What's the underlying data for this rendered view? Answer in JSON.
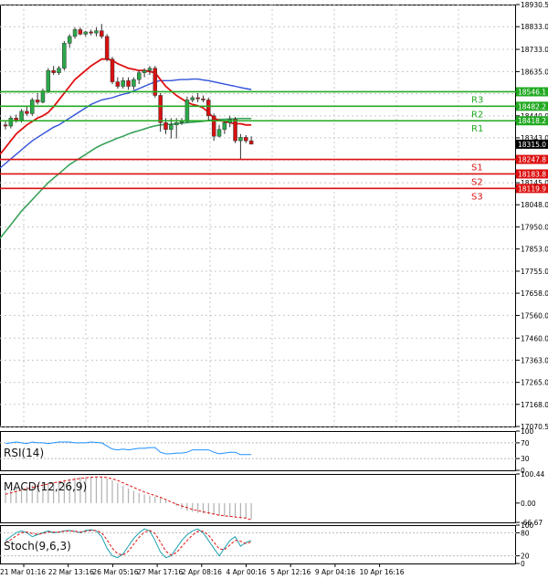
{
  "chart_data": [
    {
      "type": "candlestick",
      "timeframe_hours": 4,
      "ylim": [
        17070.5,
        18930.5
      ],
      "y_ticks": [
        18930.5,
        18833.0,
        18733.0,
        18635.0,
        18538.0,
        18440.0,
        18343.0,
        18245.0,
        18145.0,
        18048.0,
        17950.0,
        17853.0,
        17755.0,
        17658.0,
        17560.0,
        17460.0,
        17363.0,
        17265.0,
        17168.0,
        17070.5
      ],
      "y_tick_labels": [
        "18930.5",
        "18833.0",
        "18733.0",
        "18635.0",
        "18538.0",
        "18440.0",
        "18343.0",
        "18245.0",
        "18145.0",
        "18048.0",
        "17950.0",
        "17853.0",
        "17755.0",
        "17658.0",
        "17560.0",
        "17460.0",
        "17363.0",
        "17265.0",
        "17168.0",
        "17070.5"
      ],
      "x_tick_labels": [
        "21 Mar 01:16",
        "22 Mar 13:16",
        "26 Mar 05:16",
        "27 Mar 17:16",
        "2 Apr 08:16",
        "4 Apr 00:16",
        "5 Apr 12:16",
        "9 Apr 04:16",
        "10 Apr 16:16"
      ],
      "grid": true,
      "candles": [
        {
          "o": 18400,
          "h": 18420,
          "l": 18380,
          "c": 18395
        },
        {
          "o": 18395,
          "h": 18440,
          "l": 18385,
          "c": 18430
        },
        {
          "o": 18430,
          "h": 18445,
          "l": 18410,
          "c": 18420
        },
        {
          "o": 18420,
          "h": 18470,
          "l": 18410,
          "c": 18460
        },
        {
          "o": 18460,
          "h": 18480,
          "l": 18440,
          "c": 18450
        },
        {
          "o": 18450,
          "h": 18520,
          "l": 18440,
          "c": 18510
        },
        {
          "o": 18510,
          "h": 18540,
          "l": 18490,
          "c": 18500
        },
        {
          "o": 18500,
          "h": 18560,
          "l": 18495,
          "c": 18550
        },
        {
          "o": 18550,
          "h": 18650,
          "l": 18540,
          "c": 18640
        },
        {
          "o": 18640,
          "h": 18660,
          "l": 18620,
          "c": 18630
        },
        {
          "o": 18630,
          "h": 18660,
          "l": 18620,
          "c": 18650
        },
        {
          "o": 18650,
          "h": 18770,
          "l": 18640,
          "c": 18760
        },
        {
          "o": 18760,
          "h": 18800,
          "l": 18740,
          "c": 18790
        },
        {
          "o": 18790,
          "h": 18830,
          "l": 18780,
          "c": 18820
        },
        {
          "o": 18820,
          "h": 18830,
          "l": 18795,
          "c": 18800
        },
        {
          "o": 18800,
          "h": 18815,
          "l": 18790,
          "c": 18810
        },
        {
          "o": 18810,
          "h": 18820,
          "l": 18795,
          "c": 18805
        },
        {
          "o": 18805,
          "h": 18830,
          "l": 18790,
          "c": 18815
        },
        {
          "o": 18815,
          "h": 18845,
          "l": 18780,
          "c": 18790
        },
        {
          "o": 18790,
          "h": 18800,
          "l": 18680,
          "c": 18690
        },
        {
          "o": 18690,
          "h": 18700,
          "l": 18580,
          "c": 18590
        },
        {
          "o": 18590,
          "h": 18610,
          "l": 18560,
          "c": 18570
        },
        {
          "o": 18570,
          "h": 18610,
          "l": 18560,
          "c": 18595
        },
        {
          "o": 18595,
          "h": 18610,
          "l": 18555,
          "c": 18570
        },
        {
          "o": 18570,
          "h": 18610,
          "l": 18555,
          "c": 18600
        },
        {
          "o": 18600,
          "h": 18640,
          "l": 18580,
          "c": 18630
        },
        {
          "o": 18630,
          "h": 18650,
          "l": 18610,
          "c": 18640
        },
        {
          "o": 18640,
          "h": 18660,
          "l": 18620,
          "c": 18650
        },
        {
          "o": 18650,
          "h": 18660,
          "l": 18520,
          "c": 18530
        },
        {
          "o": 18530,
          "h": 18540,
          "l": 18370,
          "c": 18410
        },
        {
          "o": 18410,
          "h": 18430,
          "l": 18360,
          "c": 18380
        },
        {
          "o": 18380,
          "h": 18430,
          "l": 18340,
          "c": 18400
        },
        {
          "o": 18400,
          "h": 18430,
          "l": 18340,
          "c": 18410
        },
        {
          "o": 18410,
          "h": 18430,
          "l": 18400,
          "c": 18415
        },
        {
          "o": 18415,
          "h": 18525,
          "l": 18410,
          "c": 18510
        },
        {
          "o": 18510,
          "h": 18530,
          "l": 18500,
          "c": 18520
        },
        {
          "o": 18520,
          "h": 18540,
          "l": 18500,
          "c": 18515
        },
        {
          "o": 18515,
          "h": 18530,
          "l": 18500,
          "c": 18510
        },
        {
          "o": 18510,
          "h": 18520,
          "l": 18420,
          "c": 18440
        },
        {
          "o": 18440,
          "h": 18450,
          "l": 18330,
          "c": 18350
        },
        {
          "o": 18350,
          "h": 18400,
          "l": 18345,
          "c": 18380
        },
        {
          "o": 18380,
          "h": 18420,
          "l": 18360,
          "c": 18410
        },
        {
          "o": 18410,
          "h": 18440,
          "l": 18390,
          "c": 18425
        },
        {
          "o": 18425,
          "h": 18435,
          "l": 18320,
          "c": 18330
        },
        {
          "o": 18330,
          "h": 18360,
          "l": 18250,
          "c": 18345
        },
        {
          "o": 18345,
          "h": 18355,
          "l": 18320,
          "c": 18330
        },
        {
          "o": 18330,
          "h": 18350,
          "l": 18315,
          "c": 18315
        }
      ],
      "ma_red": [
        18300,
        18330,
        18360,
        18380,
        18400,
        18415,
        18430,
        18440,
        18455,
        18480,
        18510,
        18540,
        18570,
        18600,
        18620,
        18640,
        18660,
        18675,
        18690,
        18690,
        18685,
        18670,
        18660,
        18650,
        18645,
        18640,
        18640,
        18635,
        18630,
        18600,
        18570,
        18550,
        18530,
        18515,
        18500,
        18490,
        18485,
        18475,
        18455,
        18430,
        18420,
        18415,
        18410,
        18405,
        18405,
        18400,
        18400
      ],
      "ma_blue": [
        18230,
        18250,
        18270,
        18290,
        18310,
        18330,
        18345,
        18360,
        18375,
        18390,
        18400,
        18415,
        18430,
        18445,
        18460,
        18475,
        18490,
        18500,
        18510,
        18515,
        18520,
        18528,
        18535,
        18540,
        18550,
        18560,
        18570,
        18580,
        18590,
        18595,
        18595,
        18595,
        18598,
        18600,
        18600,
        18602,
        18602,
        18598,
        18595,
        18590,
        18585,
        18580,
        18575,
        18570,
        18565,
        18560,
        18556
      ],
      "ma_green": [
        17930,
        17960,
        17990,
        18020,
        18045,
        18070,
        18095,
        18120,
        18145,
        18165,
        18185,
        18205,
        18225,
        18240,
        18255,
        18270,
        18285,
        18300,
        18312,
        18322,
        18332,
        18342,
        18350,
        18360,
        18368,
        18375,
        18382,
        18390,
        18396,
        18400,
        18402,
        18403,
        18405,
        18408,
        18410,
        18412,
        18414,
        18416,
        18420,
        18422,
        18424,
        18425,
        18426,
        18427,
        18428,
        18428,
        18428
      ],
      "levels": [
        {
          "name": "R3",
          "value": 18546.1,
          "color": "#22aa22"
        },
        {
          "name": "R2",
          "value": 18482.2,
          "color": "#22aa22"
        },
        {
          "name": "R1",
          "value": 18418.2,
          "color": "#22aa22"
        },
        {
          "name": "S1",
          "value": 18247.8,
          "color": "#dd1111"
        },
        {
          "name": "S2",
          "value": 18183.8,
          "color": "#dd1111"
        },
        {
          "name": "S3",
          "value": 18119.9,
          "color": "#dd1111"
        }
      ],
      "level_labels": [
        "18546.1",
        "18482.2",
        "18418.2",
        "18247.8",
        "18183.8",
        "18119.9"
      ],
      "current_price": 18315.0,
      "current_price_label": "18315.0"
    },
    {
      "type": "line",
      "title": "RSI(14)",
      "ylim": [
        0,
        100
      ],
      "y_tick_labels": [
        "100",
        "70",
        "30",
        "0"
      ],
      "values": [
        68,
        70,
        72,
        70,
        68,
        72,
        70,
        70,
        68,
        70,
        72,
        72,
        72,
        70,
        70,
        70,
        72,
        71,
        70,
        62,
        54,
        52,
        54,
        52,
        54,
        56,
        56,
        58,
        58,
        46,
        42,
        42,
        44,
        44,
        46,
        52,
        52,
        52,
        52,
        46,
        42,
        44,
        46,
        46,
        40,
        40,
        40
      ]
    },
    {
      "type": "bar",
      "title": "MACD(12,26,9)",
      "ylim": [
        -66.67,
        100.44
      ],
      "y_tick_labels": [
        "100.44",
        "0.00",
        "-66.67"
      ],
      "values": [
        40,
        45,
        50,
        55,
        58,
        62,
        65,
        68,
        70,
        72,
        76,
        80,
        84,
        88,
        90,
        90,
        90,
        90,
        88,
        85,
        78,
        70,
        60,
        50,
        42,
        35,
        30,
        26,
        22,
        18,
        10,
        0,
        -10,
        -20,
        -26,
        -30,
        -34,
        -36,
        -38,
        -40,
        -44,
        -46,
        -48,
        -50,
        -52,
        -54,
        -56
      ],
      "signal": [
        30,
        35,
        40,
        45,
        50,
        54,
        58,
        62,
        66,
        70,
        73,
        76,
        79,
        82,
        85,
        87,
        89,
        90,
        90,
        88,
        84,
        78,
        70,
        62,
        54,
        46,
        38,
        32,
        26,
        20,
        12,
        4,
        -4,
        -10,
        -16,
        -22,
        -26,
        -30,
        -34,
        -38,
        -42,
        -44,
        -46,
        -48,
        -50,
        -52,
        -58
      ]
    },
    {
      "type": "line",
      "title": "Stoch(9,6,3)",
      "ylim": [
        0,
        100
      ],
      "y_tick_labels": [
        "100",
        "80",
        "20",
        "0"
      ],
      "k": [
        60,
        70,
        80,
        85,
        80,
        70,
        75,
        80,
        85,
        80,
        82,
        85,
        86,
        84,
        80,
        86,
        88,
        85,
        70,
        40,
        20,
        15,
        25,
        45,
        65,
        80,
        90,
        85,
        60,
        30,
        15,
        20,
        40,
        60,
        75,
        85,
        90,
        80,
        60,
        40,
        20,
        40,
        60,
        70,
        45,
        55,
        60
      ],
      "d": [
        55,
        62,
        72,
        80,
        82,
        78,
        76,
        78,
        82,
        82,
        82,
        84,
        85,
        84,
        82,
        84,
        86,
        86,
        80,
        62,
        40,
        25,
        22,
        32,
        50,
        68,
        82,
        86,
        78,
        56,
        32,
        22,
        28,
        44,
        60,
        74,
        84,
        84,
        74,
        56,
        38,
        36,
        48,
        60,
        58,
        52,
        56
      ]
    }
  ]
}
